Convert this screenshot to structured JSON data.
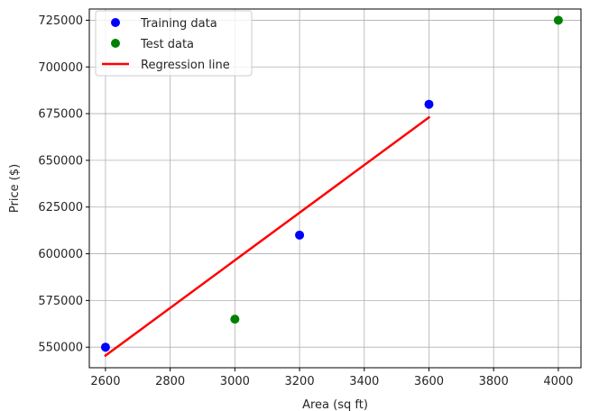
{
  "chart_data": {
    "type": "scatter",
    "title": "",
    "xlabel": "Area (sq ft)",
    "ylabel": "Price ($)",
    "xlim": [
      2550,
      4070
    ],
    "ylim": [
      539000,
      731000
    ],
    "xticks": [
      2600,
      2800,
      3000,
      3200,
      3400,
      3600,
      3800,
      4000
    ],
    "yticks": [
      550000,
      575000,
      600000,
      625000,
      650000,
      675000,
      700000,
      725000
    ],
    "grid": true,
    "legend_position": "upper-left",
    "series": [
      {
        "name": "Training data",
        "kind": "scatter",
        "color": "#0000ff",
        "points": [
          {
            "x": 2600,
            "y": 550000
          },
          {
            "x": 3200,
            "y": 610000
          },
          {
            "x": 3600,
            "y": 680000
          }
        ]
      },
      {
        "name": "Test data",
        "kind": "scatter",
        "color": "#008000",
        "points": [
          {
            "x": 3000,
            "y": 565000
          },
          {
            "x": 4000,
            "y": 725000
          }
        ]
      },
      {
        "name": "Regression line",
        "kind": "line",
        "color": "#ff0000",
        "points": [
          {
            "x": 2600,
            "y": 545500
          },
          {
            "x": 3600,
            "y": 673000
          }
        ]
      }
    ]
  }
}
